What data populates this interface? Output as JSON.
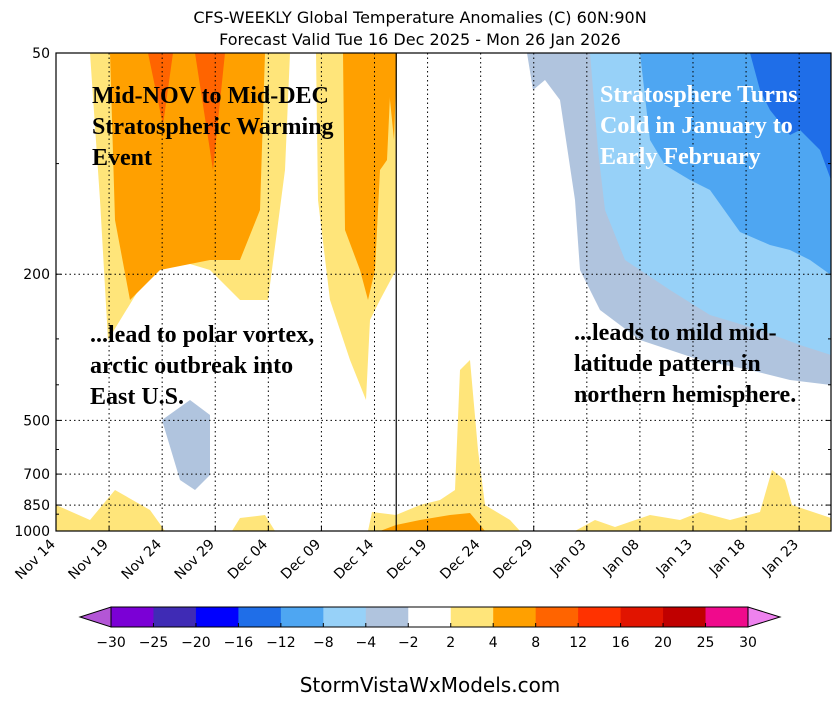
{
  "chart_data": {
    "type": "heatmap",
    "title": "CFS-WEEKLY Global Temperature Anomalies (C) 60N:90N",
    "subtitle": "Forecast Valid Tue 16 Dec 2025 - Mon 26 Jan 2026",
    "xlabel": "",
    "ylabel": "",
    "x_tick_labels": [
      "Nov 14",
      "Nov 19",
      "Nov 24",
      "Nov 29",
      "Dec 04",
      "Dec 09",
      "Dec 14",
      "Dec 19",
      "Dec 24",
      "Dec 29",
      "Jan 03",
      "Jan 08",
      "Jan 13",
      "Jan 18",
      "Jan 23"
    ],
    "y_tick_labels": [
      "50",
      "200",
      "500",
      "700",
      "850",
      "1000"
    ],
    "y_ticks": [
      50,
      200,
      500,
      700,
      850,
      1000
    ],
    "ylim": [
      1000,
      50
    ],
    "y_scale": "log",
    "xlim_days": [
      0,
      73
    ],
    "forecast_start_day": 32,
    "grid": true,
    "colorbar": {
      "levels": [
        -30,
        -25,
        -20,
        -16,
        -12,
        -8,
        -4,
        -2,
        2,
        4,
        8,
        12,
        16,
        20,
        25,
        30
      ],
      "tick_labels": [
        "−30",
        "−25",
        "−20",
        "−16",
        "−12",
        "−8",
        "−4",
        "−2",
        "2",
        "4",
        "8",
        "12",
        "16",
        "20",
        "25",
        "30"
      ],
      "colors": [
        "#7b00d6",
        "#3f2bb5",
        "#0000ff",
        "#1f6ee8",
        "#4ea6f2",
        "#97d1f8",
        "#b0c4de",
        "#ffffff",
        "#ffe57a",
        "#ffa000",
        "#ff6400",
        "#ff3200",
        "#e11400",
        "#c00000",
        "#f00a8c"
      ],
      "under_color": "#b356d6",
      "over_color": "#ee82ee"
    },
    "annotations": [
      {
        "text_lines": [
          "Mid-NOV to Mid-DEC",
          "Stratospheric Warming",
          "Event"
        ],
        "color": "#000000"
      },
      {
        "text_lines": [
          "...lead to polar vortex,",
          "arctic outbreak into",
          "East U.S."
        ],
        "color": "#000000"
      },
      {
        "text_lines": [
          "Stratosphere Turns",
          "Cold in January to",
          "Early February"
        ],
        "color": "#ffffff"
      },
      {
        "text_lines": [
          "...leads to mild mid-",
          "latitude pattern in",
          "northern hemisphere."
        ],
        "color": "#000000"
      }
    ]
  },
  "footer": "StormVistaWxModels.com"
}
